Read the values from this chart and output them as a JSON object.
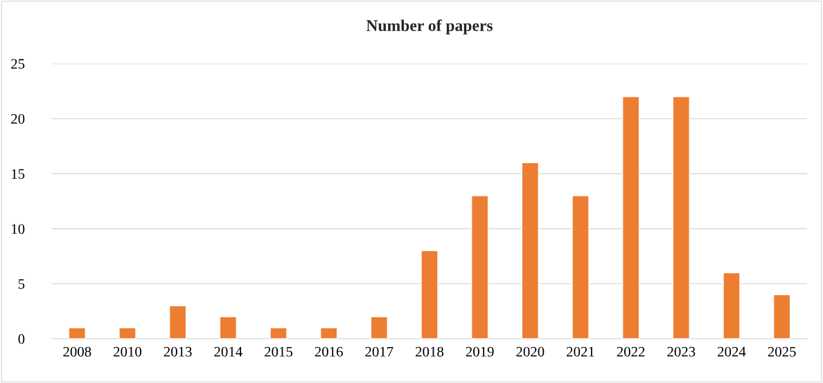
{
  "chart_data": {
    "type": "bar",
    "title": "Number of papers",
    "categories": [
      "2008",
      "2010",
      "2013",
      "2014",
      "2015",
      "2016",
      "2017",
      "2018",
      "2019",
      "2020",
      "2021",
      "2022",
      "2023",
      "2024",
      "2025"
    ],
    "values": [
      1,
      1,
      3,
      2,
      1,
      1,
      2,
      8,
      13,
      16,
      13,
      22,
      22,
      6,
      4
    ],
    "color": "#ed7d31",
    "ylim": [
      0,
      25
    ],
    "yticks": [
      0,
      5,
      10,
      15,
      20,
      25
    ],
    "grid": "y"
  }
}
